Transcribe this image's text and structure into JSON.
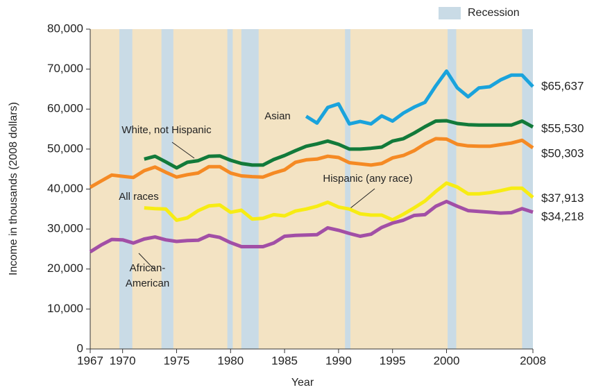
{
  "chart_data": {
    "type": "line",
    "xlabel": "Year",
    "ylabel": "Income in thousands (2008 dollars)",
    "legend_label": "Recession",
    "recession_color": "#c9dbe6",
    "background_color": "#f3e3c3",
    "recessions": [
      [
        1969.7,
        1970.9
      ],
      [
        1973.6,
        1974.7
      ],
      [
        1979.7,
        1980.2
      ],
      [
        1981.0,
        1982.6
      ],
      [
        1990.6,
        1991.1
      ],
      [
        2000.1,
        2000.9
      ],
      [
        2007.0,
        2008
      ]
    ],
    "x": [
      1967,
      1968,
      1969,
      1970,
      1971,
      1972,
      1973,
      1974,
      1975,
      1976,
      1977,
      1978,
      1979,
      1980,
      1981,
      1982,
      1983,
      1984,
      1985,
      1986,
      1987,
      1988,
      1989,
      1990,
      1991,
      1992,
      1993,
      1994,
      1995,
      1996,
      1997,
      1998,
      1999,
      2000,
      2001,
      2002,
      2003,
      2004,
      2005,
      2006,
      2007,
      2008
    ],
    "xlim": [
      1967,
      2008
    ],
    "xticks": [
      1967,
      1970,
      1975,
      1980,
      1985,
      1990,
      1995,
      2000,
      2008
    ],
    "ylim": [
      0,
      80000
    ],
    "yticks": [
      0,
      {
        "value": 10000,
        "label": "10,000"
      },
      {
        "value": 20000,
        "label": "20,000"
      },
      {
        "value": 30000,
        "label": "30,000"
      },
      {
        "value": 40000,
        "label": "40,000"
      },
      {
        "value": 50000,
        "label": "50,000"
      },
      {
        "value": 60000,
        "label": "60,000"
      },
      {
        "value": 70000,
        "label": "70,000"
      },
      {
        "value": 80000,
        "label": "80,000"
      }
    ],
    "series": [
      {
        "name": "Asian",
        "color": "#1aa3dc",
        "end_label": "$65,637",
        "values": [
          null,
          null,
          null,
          null,
          null,
          null,
          null,
          null,
          null,
          null,
          null,
          null,
          null,
          null,
          null,
          null,
          null,
          null,
          null,
          null,
          58200,
          56500,
          60400,
          61300,
          56300,
          56900,
          56300,
          58300,
          57000,
          59000,
          60500,
          61700,
          65800,
          69500,
          65300,
          63100,
          65300,
          65600,
          67300,
          68500,
          68500,
          65637
        ]
      },
      {
        "name": "White, not Hispanic",
        "color": "#127a3a",
        "end_label": "$55,530",
        "values": [
          null,
          null,
          null,
          null,
          null,
          47500,
          48200,
          46800,
          45300,
          46700,
          47100,
          48200,
          48300,
          47200,
          46400,
          46000,
          46000,
          47400,
          48400,
          49600,
          50700,
          51300,
          52000,
          51200,
          50000,
          50000,
          50200,
          50500,
          52000,
          52600,
          54000,
          55600,
          57000,
          57100,
          56400,
          56100,
          56000,
          56000,
          56000,
          56000,
          57000,
          55530
        ]
      },
      {
        "name": "All races",
        "color": "#f58a24",
        "end_label": "$50,303",
        "values": [
          40450,
          42000,
          43500,
          43200,
          42900,
          44600,
          45500,
          44200,
          43000,
          43600,
          44000,
          45600,
          45600,
          44000,
          43300,
          43100,
          43000,
          44000,
          44800,
          46700,
          47300,
          47500,
          48200,
          47900,
          46600,
          46300,
          46000,
          46400,
          47800,
          48400,
          49600,
          51300,
          52600,
          52500,
          51200,
          50800,
          50700,
          50700,
          51100,
          51500,
          52200,
          50303
        ]
      },
      {
        "name": "Hispanic (any race)",
        "color": "#f7ec13",
        "end_label": "$37,913",
        "values": [
          null,
          null,
          null,
          null,
          null,
          35300,
          35100,
          35000,
          32200,
          32800,
          34600,
          35800,
          36000,
          34200,
          34700,
          32500,
          32700,
          33600,
          33300,
          34500,
          35000,
          35700,
          36700,
          35500,
          35000,
          33800,
          33500,
          33500,
          32300,
          33700,
          35300,
          37000,
          39400,
          41500,
          40500,
          38800,
          38800,
          39100,
          39600,
          40200,
          40200,
          37913
        ]
      },
      {
        "name": "African-American",
        "color": "#a24fa6",
        "end_label": "$34,218",
        "values": [
          24300,
          26000,
          27400,
          27300,
          26500,
          27500,
          28000,
          27300,
          26900,
          27100,
          27200,
          28400,
          27900,
          26600,
          25600,
          25600,
          25600,
          26500,
          28200,
          28400,
          28500,
          28600,
          30300,
          29700,
          28900,
          28200,
          28700,
          30400,
          31500,
          32200,
          33400,
          33600,
          35700,
          36900,
          35700,
          34600,
          34400,
          34200,
          34000,
          34100,
          35100,
          34218
        ]
      }
    ]
  }
}
